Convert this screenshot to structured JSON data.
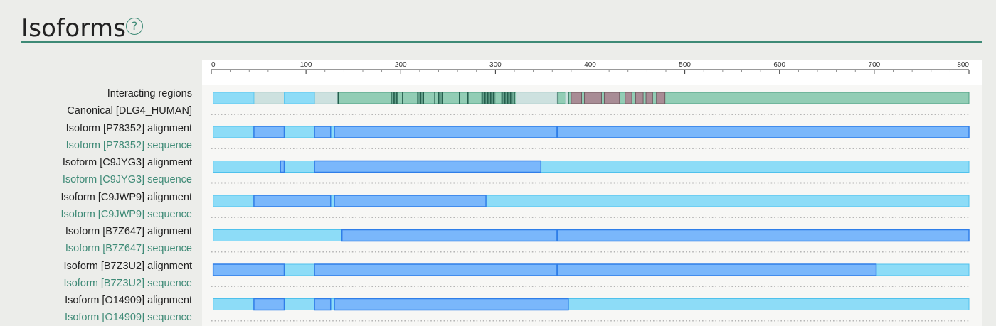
{
  "section": {
    "title": "Isoforms",
    "help_icon": "help-circle-icon",
    "help_glyph": "?"
  },
  "axis": {
    "min": 0,
    "max": 800,
    "ticks": [
      0,
      100,
      200,
      300,
      400,
      500,
      600,
      700,
      800
    ]
  },
  "colors": {
    "accent": "#3e8a76",
    "light_blue": "#8ddcf7",
    "dark_blue": "#7ab7fb",
    "interaction_green": "#92cdb5",
    "interaction_mauve": "#a88c95",
    "interaction_gray": "#cde1df"
  },
  "labels": {
    "interacting": "Interacting regions",
    "canonical": "Canonical [DLG4_HUMAN]"
  },
  "interacting_regions": {
    "light_blue": [
      [
        2,
        45
      ],
      [
        77,
        109
      ]
    ],
    "gray": [
      [
        45,
        77
      ],
      [
        109,
        133
      ],
      [
        322,
        365
      ],
      [
        374,
        377
      ]
    ],
    "green": [
      [
        133,
        800
      ]
    ],
    "bands": [
      [
        191,
        196
      ],
      [
        218,
        224
      ],
      [
        240,
        244
      ],
      [
        285,
        300
      ],
      [
        306,
        319
      ]
    ],
    "ticks": [
      134,
      190,
      193,
      196,
      202,
      218,
      221,
      224,
      236,
      240,
      244,
      262,
      271,
      286,
      289,
      292,
      295,
      298,
      307,
      310,
      313,
      316,
      320,
      366,
      377
    ],
    "mauve": [
      [
        380,
        391
      ],
      [
        394,
        412
      ],
      [
        415,
        431
      ],
      [
        437,
        444
      ],
      [
        448,
        456
      ],
      [
        459,
        466
      ],
      [
        470,
        479
      ]
    ]
  },
  "isoforms": [
    {
      "alignment_label": "Isoform [P78352] alignment",
      "sequence_label": "Isoform [P78352] sequence",
      "light": [
        [
          2,
          800
        ]
      ],
      "dark": [
        [
          45,
          77
        ],
        [
          109,
          126
        ],
        [
          130,
          365
        ],
        [
          366,
          800
        ]
      ]
    },
    {
      "alignment_label": "Isoform [C9JYG3] alignment",
      "sequence_label": "Isoform [C9JYG3] sequence",
      "light": [
        [
          2,
          800
        ]
      ],
      "dark": [
        [
          73,
          77
        ],
        [
          109,
          348
        ]
      ]
    },
    {
      "alignment_label": "Isoform [C9JWP9] alignment",
      "sequence_label": "Isoform [C9JWP9] sequence",
      "light": [
        [
          2,
          800
        ]
      ],
      "dark": [
        [
          45,
          126
        ],
        [
          130,
          290
        ]
      ]
    },
    {
      "alignment_label": "Isoform [B7Z647] alignment",
      "sequence_label": "Isoform [B7Z647] sequence",
      "light": [
        [
          2,
          800
        ]
      ],
      "dark": [
        [
          138,
          365
        ],
        [
          366,
          800
        ]
      ]
    },
    {
      "alignment_label": "Isoform [B7Z3U2] alignment",
      "sequence_label": "Isoform [B7Z3U2] sequence",
      "light": [
        [
          2,
          800
        ]
      ],
      "dark": [
        [
          2,
          77
        ],
        [
          109,
          365
        ],
        [
          366,
          702
        ]
      ]
    },
    {
      "alignment_label": "Isoform [O14909] alignment",
      "sequence_label": "Isoform [O14909] sequence",
      "light": [
        [
          2,
          800
        ]
      ],
      "dark": [
        [
          45,
          77
        ],
        [
          109,
          126
        ],
        [
          130,
          377
        ]
      ]
    }
  ]
}
